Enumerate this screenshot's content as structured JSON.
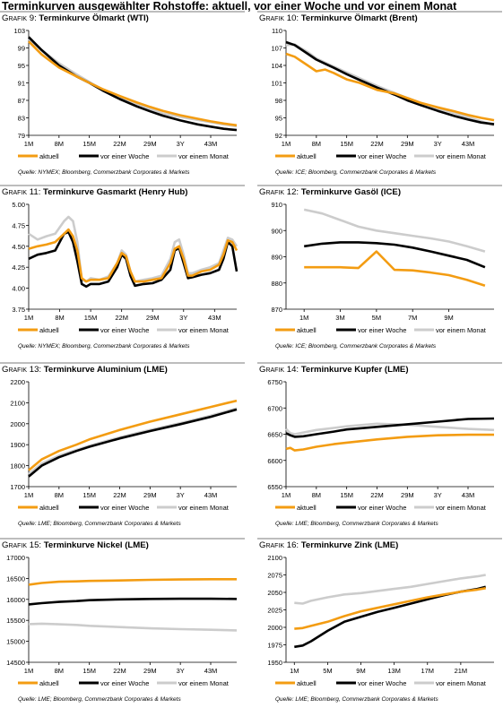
{
  "page": {
    "title": "Terminkurven ausgewählter Rohstoffe: aktuell, vor einer Woche und vor einem Monat"
  },
  "colors": {
    "aktuell": "#f39c12",
    "vor_einer_woche": "#000000",
    "vor_einem_monat": "#cccccc"
  },
  "chart_data": [
    {
      "prefix": "Grafik 9:",
      "title": "Terminkurve Ölmarkt (WTI)",
      "source": "Quelle: NYMEX; Bloomberg, Commerzbank Corporates & Markets",
      "type": "line",
      "x": [
        1,
        4,
        8,
        12,
        15,
        18,
        22,
        26,
        29,
        32,
        36,
        40,
        43,
        46,
        49
      ],
      "xticks": [
        "1M",
        "8M",
        "15M",
        "22M",
        "29M",
        "3Y",
        "43M"
      ],
      "xtick_pos": [
        1,
        8,
        15,
        22,
        29,
        36,
        43
      ],
      "xlim": [
        1,
        49
      ],
      "ylim": [
        79,
        103
      ],
      "yticks": [
        "103",
        "99",
        "95",
        "91",
        "87",
        "83",
        "79"
      ],
      "series": [
        {
          "name": "aktuell",
          "values": [
            100.5,
            97.5,
            94.5,
            92.5,
            91,
            89.6,
            88,
            86.5,
            85.5,
            84.6,
            83.6,
            82.8,
            82.2,
            81.7,
            81.3
          ]
        },
        {
          "name": "vor einer Woche",
          "values": [
            101.5,
            98.5,
            95,
            92.5,
            91,
            89.3,
            87.3,
            85.6,
            84.5,
            83.5,
            82.4,
            81.5,
            81,
            80.5,
            80.2
          ]
        },
        {
          "name": "vor einem Monat",
          "values": [
            101,
            98.5,
            95.5,
            93,
            91.2,
            89.5,
            87.5,
            86,
            85,
            84,
            83.2,
            82.5,
            82,
            81.5,
            81.1
          ]
        }
      ],
      "legend": "bottom"
    },
    {
      "prefix": "Grafik 10:",
      "title": "Terminkurve Ölmarkt (Brent)",
      "source": "Quelle: ICE; Bloomberg, Commerzbank Corporates & Markets",
      "type": "line",
      "x": [
        1,
        3,
        6,
        8,
        10,
        12,
        15,
        18,
        22,
        26,
        29,
        32,
        36,
        40,
        43,
        46,
        49
      ],
      "xticks": [
        "1M",
        "8M",
        "15M",
        "22M",
        "29M",
        "3Y",
        "43M"
      ],
      "xtick_pos": [
        1,
        8,
        15,
        22,
        29,
        36,
        43
      ],
      "xlim": [
        1,
        49
      ],
      "ylim": [
        92,
        110
      ],
      "yticks": [
        "110",
        "107",
        "104",
        "101",
        "98",
        "95",
        "92"
      ],
      "series": [
        {
          "name": "aktuell",
          "values": [
            106,
            105.5,
            104,
            103,
            103.3,
            102.7,
            101.6,
            101,
            99.8,
            99.2,
            98.4,
            97.6,
            96.8,
            96.1,
            95.5,
            95,
            94.6
          ]
        },
        {
          "name": "vor einer Woche",
          "values": [
            108,
            107.5,
            106,
            105,
            104.3,
            103.6,
            102.5,
            101.5,
            100.2,
            99,
            98,
            97.2,
            96.2,
            95.3,
            94.7,
            94.2,
            93.9
          ]
        },
        {
          "name": "vor einem Monat",
          "values": [
            107.5,
            107.6,
            106.3,
            105.2,
            104.5,
            103.8,
            102.8,
            101.8,
            100.5,
            99.3,
            98.4,
            97.6,
            96.6,
            95.8,
            95.1,
            94.4,
            93.7
          ]
        }
      ],
      "legend": "bottom"
    },
    {
      "prefix": "Grafik 11:",
      "title": "Terminkurve Gasmarkt (Henry Hub)",
      "source": "Quelle: NYMEX; Bloomberg, Commerzbank Corporates & Markets",
      "type": "line",
      "x": [
        1,
        3,
        5,
        7,
        9,
        10,
        11,
        12,
        13,
        14,
        15,
        17,
        19,
        21,
        22,
        23,
        24,
        25,
        27,
        29,
        31,
        33,
        34,
        35,
        36,
        37,
        38,
        40,
        42,
        44,
        45,
        46,
        47,
        48
      ],
      "xticks": [
        "1M",
        "8M",
        "15M",
        "22M",
        "29M",
        "3Y",
        "43M"
      ],
      "xtick_pos": [
        1,
        8,
        15,
        22,
        29,
        36,
        43
      ],
      "xlim": [
        1,
        48
      ],
      "ylim": [
        3.75,
        5
      ],
      "yticks": [
        "5.00",
        "4.75",
        "4.50",
        "4.25",
        "4.00",
        "3.75"
      ],
      "series": [
        {
          "name": "aktuell",
          "values": [
            4.47,
            4.5,
            4.52,
            4.55,
            4.65,
            4.7,
            4.62,
            4.45,
            4.12,
            4.08,
            4.1,
            4.1,
            4.12,
            4.3,
            4.42,
            4.38,
            4.2,
            4.08,
            4.08,
            4.1,
            4.12,
            4.3,
            4.47,
            4.5,
            4.35,
            4.15,
            4.15,
            4.2,
            4.22,
            4.28,
            4.4,
            4.57,
            4.55,
            4.45
          ]
        },
        {
          "name": "vor einer Woche",
          "values": [
            4.35,
            4.4,
            4.42,
            4.45,
            4.65,
            4.67,
            4.55,
            4.32,
            4.05,
            4.02,
            4.05,
            4.05,
            4.08,
            4.25,
            4.4,
            4.35,
            4.15,
            4.03,
            4.05,
            4.06,
            4.1,
            4.22,
            4.45,
            4.48,
            4.3,
            4.12,
            4.13,
            4.16,
            4.18,
            4.22,
            4.35,
            4.55,
            4.5,
            4.2
          ]
        },
        {
          "name": "vor einem Monat",
          "values": [
            4.65,
            4.58,
            4.62,
            4.65,
            4.8,
            4.85,
            4.8,
            4.55,
            4.1,
            4.08,
            4.12,
            4.1,
            4.14,
            4.3,
            4.45,
            4.4,
            4.2,
            4.08,
            4.1,
            4.12,
            4.15,
            4.35,
            4.55,
            4.58,
            4.4,
            4.18,
            4.18,
            4.22,
            4.25,
            4.3,
            4.45,
            4.6,
            4.58,
            4.5
          ]
        }
      ],
      "legend": "bottom"
    },
    {
      "prefix": "Grafik 12:",
      "title": "Terminkurve Gasöl (ICE)",
      "source": "Quelle: ICE; Bloomberg, Commerzbank Corporates & Markets",
      "type": "line",
      "x": [
        1,
        2,
        3,
        4,
        5,
        6,
        7,
        8,
        9,
        10,
        11
      ],
      "xticks": [
        "1M",
        "3M",
        "5M",
        "7M",
        "9M"
      ],
      "xtick_pos": [
        1,
        3,
        5,
        7,
        9
      ],
      "xlim": [
        0,
        11.5
      ],
      "ylim": [
        870,
        910
      ],
      "yticks": [
        "910",
        "900",
        "890",
        "880",
        "870"
      ],
      "series": [
        {
          "name": "aktuell",
          "values": [
            886,
            886,
            886,
            885.7,
            892,
            885,
            884.8,
            884,
            883,
            881.2,
            879
          ]
        },
        {
          "name": "vor einer Woche",
          "values": [
            894,
            895,
            895.5,
            895.5,
            895.2,
            894.6,
            893.5,
            892,
            890.4,
            888.8,
            886
          ]
        },
        {
          "name": "vor einem Monat",
          "values": [
            908,
            906.5,
            904,
            901.5,
            900,
            899,
            898,
            897,
            895.8,
            894,
            892
          ]
        }
      ],
      "legend": "bottom"
    },
    {
      "prefix": "Grafik 13:",
      "title": "Terminkurve Aluminium (LME)",
      "source": "Quelle: LME; Bloomberg, Commerzbank Corporates & Markets",
      "type": "line",
      "x": [
        1,
        4,
        8,
        12,
        15,
        22,
        29,
        36,
        43,
        49
      ],
      "xticks": [
        "1M",
        "8M",
        "15M",
        "22M",
        "29M",
        "3Y",
        "43M"
      ],
      "xtick_pos": [
        1,
        8,
        15,
        22,
        29,
        36,
        43
      ],
      "xlim": [
        1,
        49
      ],
      "ylim": [
        1700,
        2200
      ],
      "yticks": [
        "2200",
        "2100",
        "2000",
        "1900",
        "1800",
        "1700"
      ],
      "series": [
        {
          "name": "aktuell",
          "values": [
            1778,
            1830,
            1870,
            1900,
            1925,
            1970,
            2010,
            2045,
            2080,
            2110
          ]
        },
        {
          "name": "vor einer Woche",
          "values": [
            1748,
            1800,
            1840,
            1870,
            1890,
            1930,
            1965,
            1998,
            2033,
            2068
          ]
        },
        {
          "name": "vor einem Monat",
          "values": [
            1760,
            1810,
            1848,
            1875,
            1895,
            1935,
            1970,
            2003,
            2038,
            2073
          ]
        }
      ],
      "legend": "bottom"
    },
    {
      "prefix": "Grafik 14:",
      "title": "Terminkurve Kupfer (LME)",
      "source": "Quelle: LME; Bloomberg, Commerzbank Corporates & Markets",
      "type": "line",
      "x": [
        1,
        2,
        3,
        5,
        8,
        12,
        15,
        22,
        29,
        36,
        43,
        49
      ],
      "xticks": [
        "1M",
        "8M",
        "15M",
        "22M",
        "29M",
        "3Y",
        "43M"
      ],
      "xtick_pos": [
        1,
        8,
        15,
        22,
        29,
        36,
        43
      ],
      "xlim": [
        1,
        49
      ],
      "ylim": [
        6550,
        6750
      ],
      "yticks": [
        "6750",
        "6700",
        "6650",
        "6600",
        "6550"
      ],
      "series": [
        {
          "name": "aktuell",
          "values": [
            6622,
            6624,
            6619,
            6621,
            6626,
            6631,
            6634,
            6640,
            6645,
            6648,
            6649,
            6649
          ]
        },
        {
          "name": "vor einer Woche",
          "values": [
            6652,
            6648,
            6645,
            6646,
            6650,
            6655,
            6659,
            6664,
            6669,
            6674,
            6679,
            6680
          ]
        },
        {
          "name": "vor einem Monat",
          "values": [
            6660,
            6652,
            6650,
            6653,
            6658,
            6662,
            6665,
            6670,
            6668,
            6664,
            6660,
            6658
          ]
        }
      ],
      "legend": "bottom"
    },
    {
      "prefix": "Grafik 15:",
      "title": "Terminkurve Nickel (LME)",
      "source": "Quelle: LME; Bloomberg, Commerzbank Corporates & Markets",
      "type": "line",
      "x": [
        1,
        4,
        8,
        12,
        15,
        22,
        29,
        36,
        43,
        49
      ],
      "xticks": [
        "1M",
        "8M",
        "15M",
        "22M",
        "29M",
        "3Y",
        "43M"
      ],
      "xtick_pos": [
        1,
        8,
        15,
        22,
        29,
        36,
        43
      ],
      "xlim": [
        1,
        49
      ],
      "ylim": [
        14500,
        17000
      ],
      "yticks": [
        "17000",
        "16500",
        "16000",
        "15500",
        "15000",
        "14500"
      ],
      "series": [
        {
          "name": "aktuell",
          "values": [
            16350,
            16390,
            16420,
            16430,
            16440,
            16450,
            16465,
            16475,
            16480,
            16480
          ]
        },
        {
          "name": "vor einer Woche",
          "values": [
            15880,
            15910,
            15940,
            15960,
            15980,
            16000,
            16010,
            16015,
            16015,
            16010
          ]
        },
        {
          "name": "vor einem Monat",
          "values": [
            15410,
            15420,
            15405,
            15390,
            15370,
            15340,
            15310,
            15290,
            15275,
            15260
          ]
        }
      ],
      "legend": "bottom"
    },
    {
      "prefix": "Grafik 16:",
      "title": "Terminkurve Zink (LME)",
      "source": "Quelle: LME; Bloomberg, Commerzbank Corporates & Markets",
      "type": "line",
      "x": [
        1,
        2,
        3,
        5,
        7,
        9,
        11,
        13,
        15,
        17,
        19,
        21,
        23,
        24
      ],
      "xticks": [
        "1M",
        "5M",
        "9M",
        "13M",
        "17M",
        "21M"
      ],
      "xtick_pos": [
        1,
        5,
        9,
        13,
        17,
        21
      ],
      "xlim": [
        0,
        25
      ],
      "ylim": [
        1950,
        2100
      ],
      "yticks": [
        "2100",
        "2075",
        "2050",
        "2025",
        "2000",
        "1975",
        "1950"
      ],
      "series": [
        {
          "name": "aktuell",
          "values": [
            1998,
            1999,
            2002,
            2008,
            2016,
            2023,
            2028,
            2033,
            2038,
            2043,
            2047,
            2051,
            2054,
            2056
          ]
        },
        {
          "name": "vor einer Woche",
          "values": [
            1972,
            1974,
            1980,
            1995,
            2008,
            2015,
            2022,
            2028,
            2034,
            2040,
            2046,
            2051,
            2055,
            2058
          ]
        },
        {
          "name": "vor einem Monat",
          "values": [
            2035,
            2034,
            2038,
            2043,
            2047,
            2049,
            2052,
            2055,
            2058,
            2062,
            2066,
            2070,
            2073,
            2075
          ]
        }
      ],
      "legend": "bottom"
    }
  ]
}
